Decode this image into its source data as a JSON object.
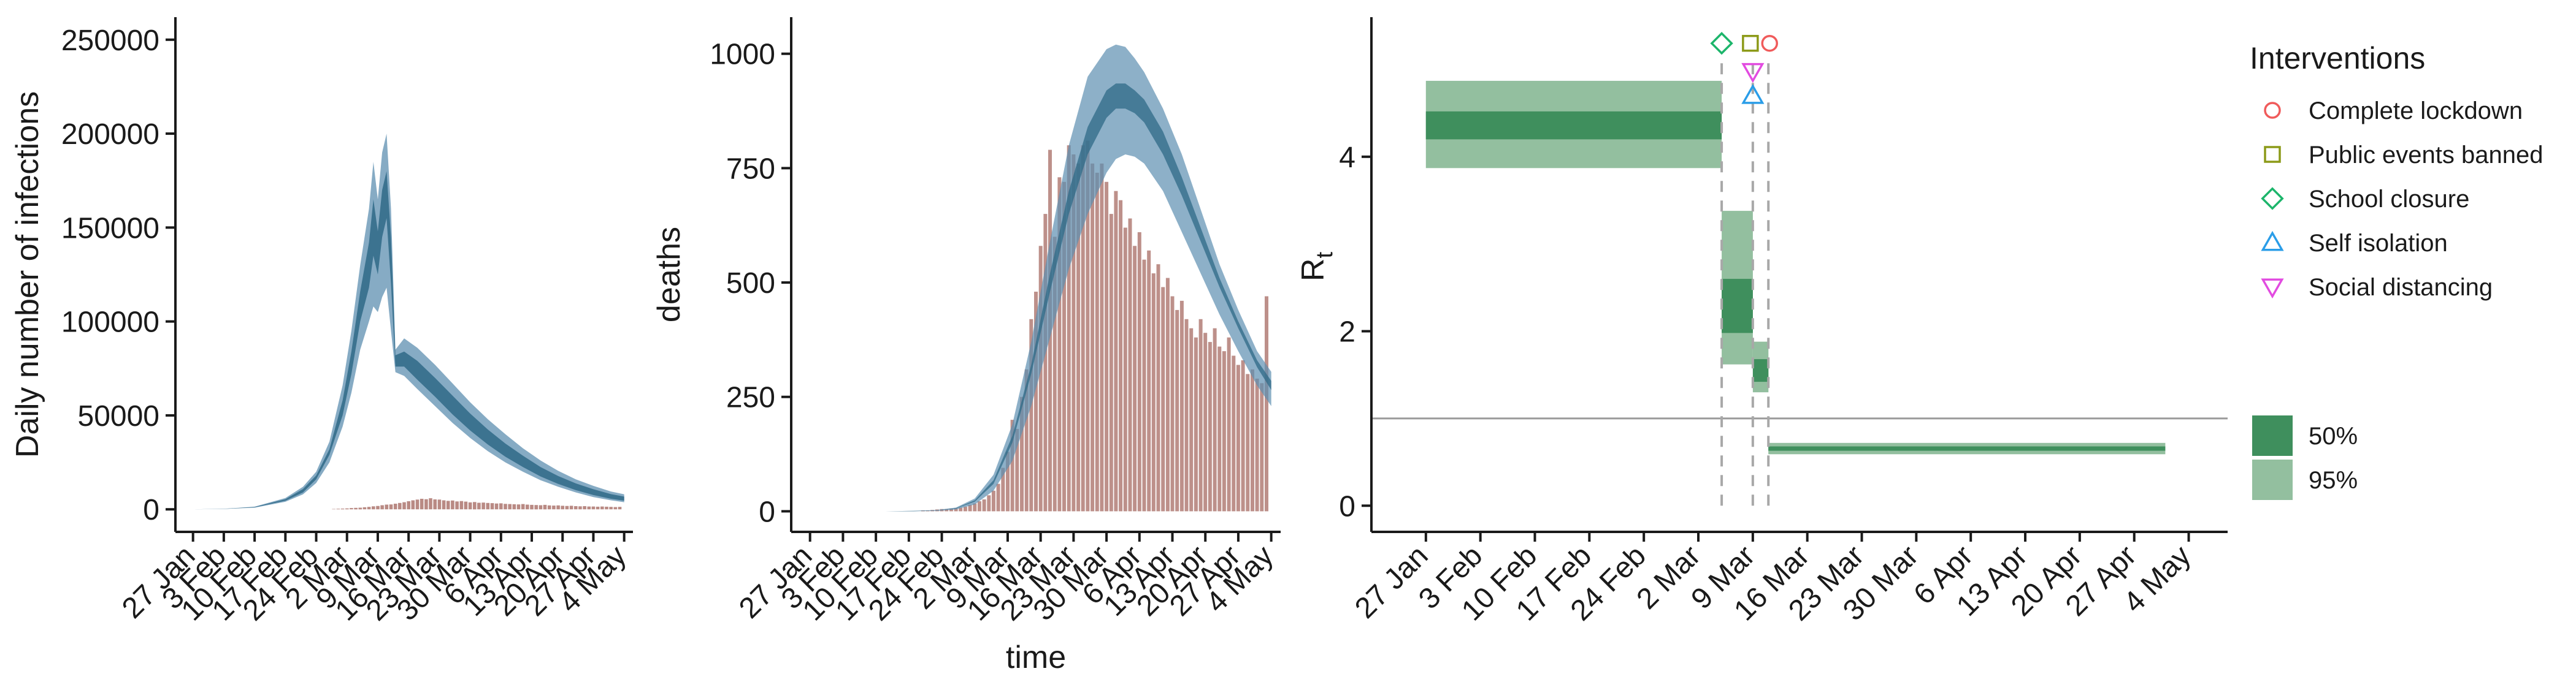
{
  "colors": {
    "band95_infections": "#5d8fb0",
    "band50_infections": "#2f6987",
    "observed_bars": "#b98a84",
    "rt_band95": "#93bf9f",
    "rt_band50": "#3f8f5d",
    "threshold_line": "#9a9a9a",
    "intervention_line": "#a8a8a8",
    "complete_lockdown": "#f05b5b",
    "public_events_banned": "#8c9a18",
    "school_closure": "#1cb56b",
    "self_isolation": "#2a9de8",
    "social_distancing": "#e24be0"
  },
  "date_ticks": [
    "27 Jan",
    "3 Feb",
    "10 Feb",
    "17 Feb",
    "24 Feb",
    "2 Mar",
    "9 Mar",
    "16 Mar",
    "23 Mar",
    "30 Mar",
    "6 Apr",
    "13 Apr",
    "20 Apr",
    "27 Apr",
    "4 May"
  ],
  "chart_data": [
    {
      "type": "area",
      "id": "infections",
      "ylabel": "Daily number of infections",
      "xlabel": "",
      "ylim": [
        -12000,
        262000
      ],
      "xlim": [
        "2020-01-23",
        "2020-05-06"
      ],
      "y_ticks": [
        0,
        50000,
        100000,
        150000,
        200000,
        250000
      ],
      "y_tick_labels": [
        "0",
        "50000",
        "100000",
        "150000",
        "200000",
        "250000"
      ],
      "model_band": {
        "x": [
          "2020-01-27",
          "2020-02-03",
          "2020-02-10",
          "2020-02-17",
          "2020-02-21",
          "2020-02-24",
          "2020-02-27",
          "2020-03-01",
          "2020-03-03",
          "2020-03-05",
          "2020-03-07",
          "2020-03-08",
          "2020-03-09",
          "2020-03-10",
          "2020-03-11",
          "2020-03-12",
          "2020-03-13",
          "2020-03-15",
          "2020-03-18",
          "2020-03-22",
          "2020-03-26",
          "2020-03-30",
          "2020-04-03",
          "2020-04-07",
          "2020-04-11",
          "2020-04-15",
          "2020-04-19",
          "2020-04-23",
          "2020-04-27",
          "2020-05-01",
          "2020-05-04"
        ],
        "lo95": [
          0,
          200,
          900,
          4000,
          8000,
          14000,
          25000,
          44000,
          62000,
          85000,
          100000,
          108000,
          105000,
          113000,
          118000,
          95000,
          73000,
          71000,
          64000,
          55000,
          46000,
          38000,
          31000,
          25000,
          20000,
          15500,
          12000,
          9000,
          6500,
          4800,
          3800
        ],
        "hi95": [
          0,
          300,
          1400,
          6000,
          12000,
          20000,
          36000,
          66000,
          95000,
          130000,
          160000,
          185000,
          165000,
          190000,
          200000,
          160000,
          85000,
          91000,
          86000,
          77000,
          67000,
          57000,
          48000,
          40000,
          32500,
          26000,
          20500,
          16000,
          12500,
          9500,
          8000
        ],
        "lo50": [
          0,
          230,
          1050,
          4600,
          9000,
          16000,
          29000,
          50000,
          72000,
          100000,
          118000,
          135000,
          125000,
          145000,
          155000,
          120000,
          76000,
          76000,
          69000,
          60000,
          50500,
          42000,
          34500,
          28000,
          22500,
          17500,
          13500,
          10200,
          7600,
          5600,
          4600
        ],
        "hi50": [
          0,
          270,
          1250,
          5400,
          10800,
          18000,
          32000,
          58000,
          84000,
          116000,
          142000,
          165000,
          148000,
          170000,
          180000,
          145000,
          82000,
          84000,
          79000,
          70000,
          60500,
          51000,
          42500,
          35000,
          28500,
          22500,
          17700,
          13800,
          10700,
          8100,
          6800
        ]
      },
      "observed_daily": {
        "start": "2020-02-20",
        "values": [
          0,
          0,
          0,
          0,
          0,
          0,
          0,
          0,
          200,
          300,
          400,
          500,
          700,
          800,
          900,
          1100,
          1300,
          1600,
          1800,
          2200,
          2500,
          2600,
          3000,
          3400,
          3800,
          4300,
          4800,
          5200,
          5600,
          5400,
          5900,
          5300,
          5200,
          4800,
          4500,
          4700,
          4200,
          4400,
          4100,
          3700,
          3900,
          3500,
          3600,
          3400,
          3300,
          3100,
          3200,
          2900,
          2800,
          2700,
          2600,
          2800,
          2500,
          2400,
          2300,
          2200,
          2400,
          2100,
          2000,
          2100,
          1900,
          1800,
          1900,
          1700,
          1600,
          1700,
          1500,
          1500,
          1400,
          1500,
          1400,
          1300,
          1200,
          1300
        ]
      }
    },
    {
      "type": "area",
      "id": "deaths",
      "ylabel": "deaths",
      "xlabel": "time",
      "ylim": [
        -45,
        1080
      ],
      "xlim": [
        "2020-01-23",
        "2020-05-06"
      ],
      "y_ticks": [
        0,
        250,
        500,
        750,
        1000
      ],
      "y_tick_labels": [
        "0",
        "250",
        "500",
        "750",
        "1000"
      ],
      "model_band": {
        "x": [
          "2020-01-27",
          "2020-02-05",
          "2020-02-12",
          "2020-02-18",
          "2020-02-23",
          "2020-02-27",
          "2020-03-02",
          "2020-03-06",
          "2020-03-10",
          "2020-03-14",
          "2020-03-18",
          "2020-03-22",
          "2020-03-26",
          "2020-03-30",
          "2020-04-01",
          "2020-04-03",
          "2020-04-05",
          "2020-04-07",
          "2020-04-11",
          "2020-04-15",
          "2020-04-19",
          "2020-04-23",
          "2020-04-27",
          "2020-05-01",
          "2020-05-04"
        ],
        "lo95": [
          0,
          0,
          0,
          0,
          1,
          4,
          15,
          45,
          110,
          230,
          380,
          530,
          650,
          740,
          770,
          780,
          775,
          760,
          700,
          610,
          520,
          430,
          350,
          275,
          230
        ],
        "hi95": [
          0,
          0,
          0,
          1,
          3,
          8,
          28,
          80,
          190,
          370,
          590,
          800,
          950,
          1010,
          1020,
          1015,
          990,
          960,
          880,
          780,
          660,
          540,
          440,
          350,
          305
        ],
        "lo50": [
          0,
          0,
          0,
          0,
          2,
          6,
          21,
          60,
          150,
          300,
          480,
          650,
          780,
          860,
          880,
          880,
          870,
          850,
          780,
          690,
          590,
          490,
          400,
          315,
          265
        ],
        "hi50": [
          0,
          0,
          0,
          1,
          2,
          7,
          24,
          68,
          165,
          320,
          520,
          700,
          840,
          920,
          935,
          935,
          920,
          900,
          830,
          730,
          620,
          510,
          415,
          330,
          285
        ]
      },
      "observed_daily": {
        "start": "2020-02-20",
        "values": [
          2,
          2,
          3,
          4,
          5,
          5,
          6,
          7,
          8,
          10,
          14,
          17,
          22,
          26,
          35,
          45,
          60,
          95,
          130,
          200,
          180,
          250,
          310,
          420,
          480,
          580,
          650,
          790,
          600,
          730,
          720,
          800,
          780,
          760,
          800,
          810,
          760,
          740,
          760,
          720,
          650,
          700,
          680,
          620,
          640,
          580,
          610,
          550,
          570,
          520,
          540,
          490,
          510,
          470,
          440,
          460,
          420,
          400,
          380,
          420,
          390,
          370,
          400,
          360,
          350,
          380,
          340,
          320,
          330,
          300,
          310,
          290,
          280,
          470
        ]
      }
    },
    {
      "type": "range",
      "id": "rt",
      "ylabel_main": "R",
      "ylabel_sub": "t",
      "xlabel": "",
      "ylim": [
        -0.3,
        5.6
      ],
      "xlim": [
        "2020-01-20",
        "2020-05-09"
      ],
      "y_ticks": [
        0,
        2,
        4
      ],
      "y_tick_labels": [
        "0",
        "2",
        "4"
      ],
      "threshold": 1,
      "segments": [
        {
          "start": "2020-01-27",
          "end": "2020-03-05",
          "lo95": 3.87,
          "hi95": 4.87,
          "lo50": 4.2,
          "hi50": 4.52
        },
        {
          "start": "2020-03-05",
          "end": "2020-03-09",
          "lo95": 1.62,
          "hi95": 3.38,
          "lo50": 1.98,
          "hi50": 2.6
        },
        {
          "start": "2020-03-09",
          "end": "2020-03-11",
          "lo95": 1.3,
          "hi95": 1.88,
          "lo50": 1.42,
          "hi50": 1.68
        },
        {
          "start": "2020-03-11",
          "end": "2020-05-01",
          "lo95": 0.59,
          "hi95": 0.72,
          "lo50": 0.63,
          "hi50": 0.68
        }
      ],
      "interventions": [
        {
          "name": "Complete lockdown",
          "date": "2020-03-11",
          "shape": "circle",
          "y": 5.3
        },
        {
          "name": "Public events banned",
          "date": "2020-03-09",
          "shape": "square",
          "y": 5.3
        },
        {
          "name": "School closure",
          "date": "2020-03-05",
          "shape": "diamond",
          "y": 5.3
        },
        {
          "name": "Self isolation",
          "date": "2020-03-09",
          "shape": "triangle-up",
          "y": 4.7
        },
        {
          "name": "Social distancing",
          "date": "2020-03-09",
          "shape": "triangle-down",
          "y": 4.98
        }
      ]
    }
  ],
  "legend": {
    "interventions_title": "Interventions",
    "interventions": [
      {
        "label": "Complete lockdown",
        "shape": "circle",
        "color_key": "complete_lockdown"
      },
      {
        "label": "Public events banned",
        "shape": "square",
        "color_key": "public_events_banned"
      },
      {
        "label": "School closure",
        "shape": "diamond",
        "color_key": "school_closure"
      },
      {
        "label": "Self isolation",
        "shape": "triangle-up",
        "color_key": "self_isolation"
      },
      {
        "label": "Social distancing",
        "shape": "triangle-down",
        "color_key": "social_distancing"
      }
    ],
    "bands": [
      {
        "label": "50%",
        "color_key": "rt_band50"
      },
      {
        "label": "95%",
        "color_key": "rt_band95"
      }
    ]
  }
}
